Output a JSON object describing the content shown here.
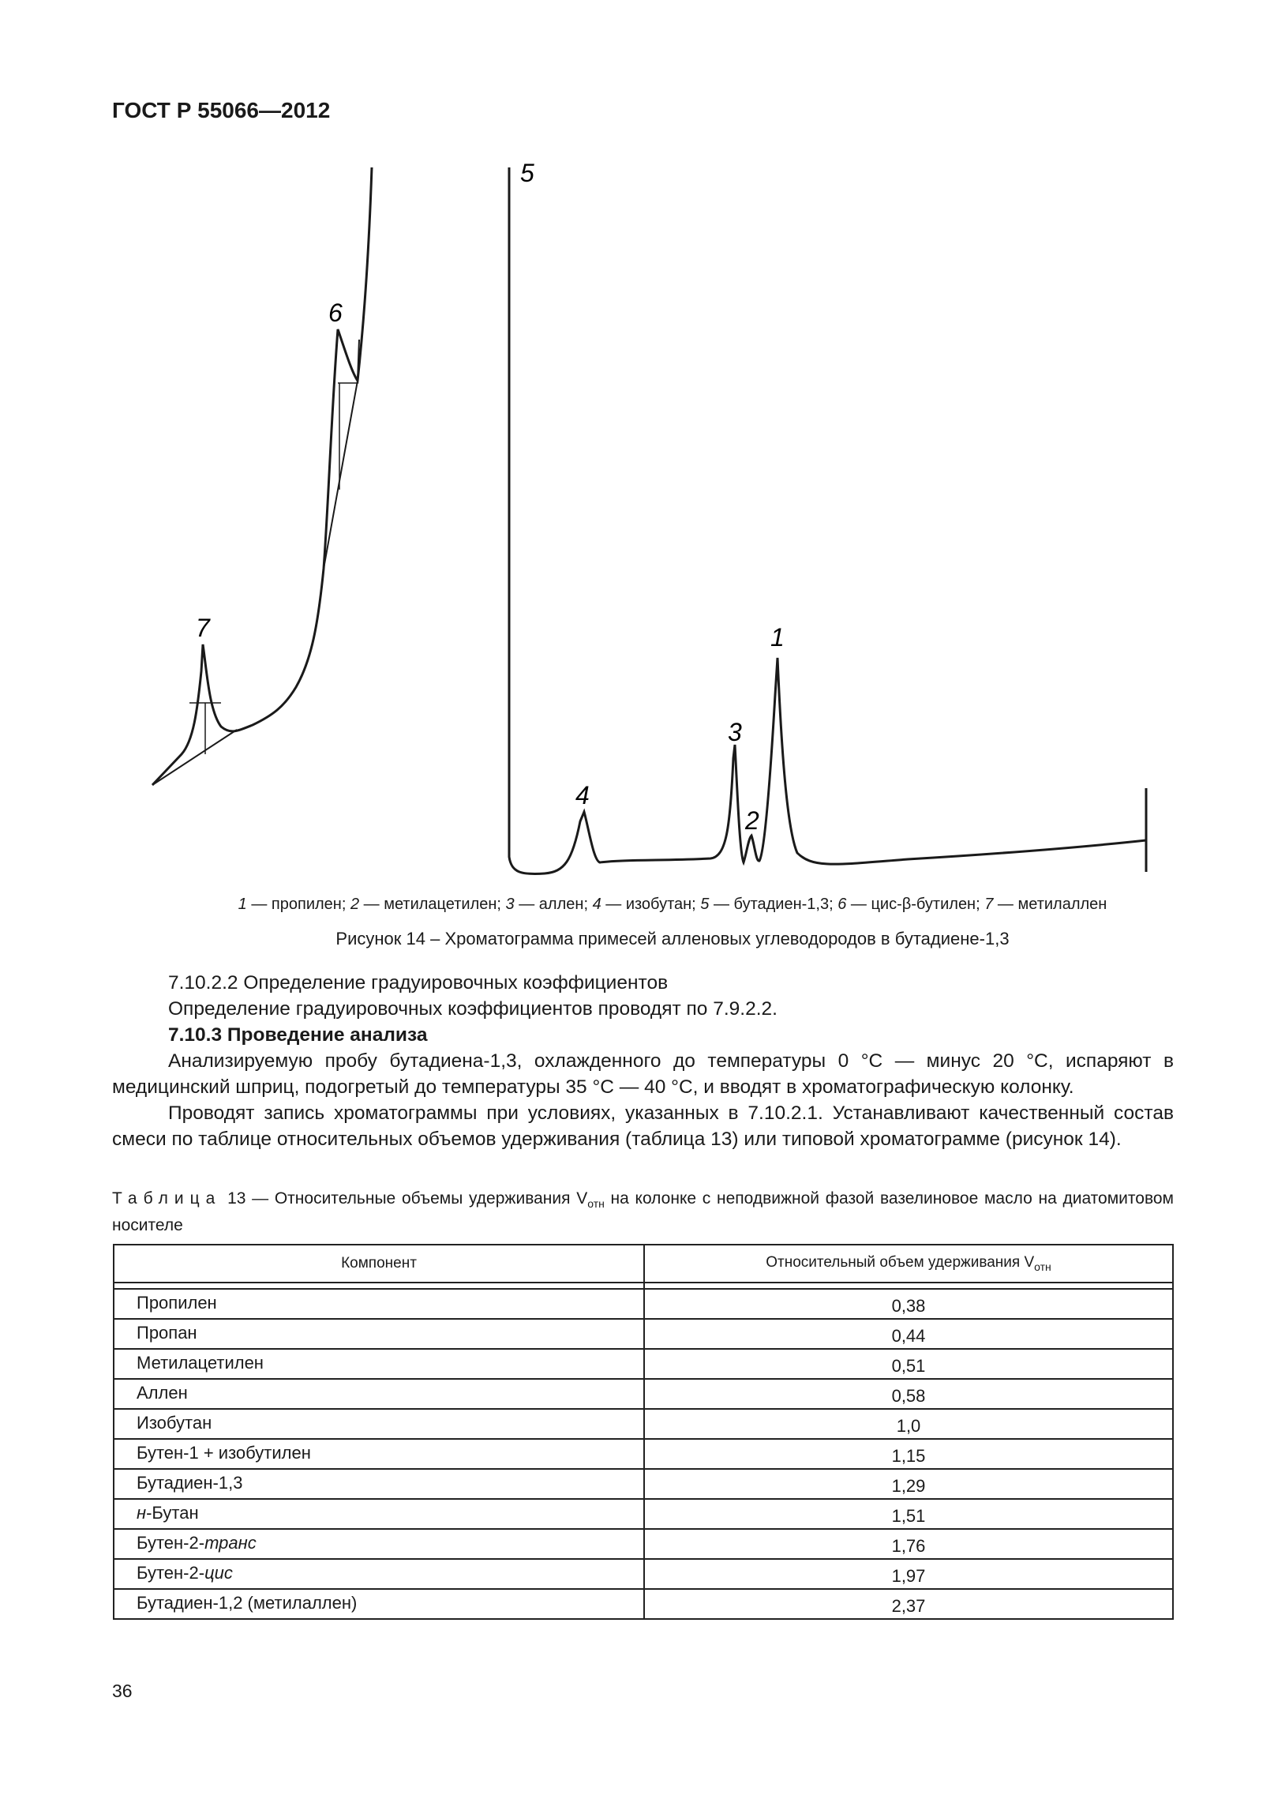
{
  "header": "ГОСТ Р 55066—2012",
  "figure": {
    "peak_labels": [
      "1",
      "2",
      "3",
      "4",
      "5",
      "6",
      "7"
    ],
    "legend": [
      {
        "num": "1",
        "name": "пропилен"
      },
      {
        "num": "2",
        "name": "метилацетилен"
      },
      {
        "num": "3",
        "name": "аллен"
      },
      {
        "num": "4",
        "name": "изобутан"
      },
      {
        "num": "5",
        "name": "бутадиен-1,3"
      },
      {
        "num": "6",
        "name": "цис-β-бутилен"
      },
      {
        "num": "7",
        "name": "метилаллен"
      }
    ],
    "caption": "Рисунок 14 – Хроматограмма примесей алленовых углеводородов в бутадиене-1,3"
  },
  "body": {
    "p1": "7.10.2.2 Определение градуировочных коэффициентов",
    "p2": "Определение градуировочных коэффициентов проводят по 7.9.2.2.",
    "h": "7.10.3 Проведение анализа",
    "p3": "Анализируемую пробу бутадиена-1,3, охлажденного до температуры 0 °С — минус 20 °С, испаряют в медицинский шприц, подогретый до температуры 35 °С — 40 °С, и вводят в хроматографическую колонку.",
    "p4": "Проводят запись хроматограммы при условиях, указанных в 7.10.2.1. Устанавливают качественный состав смеси по таблице относительных объемов удерживания (таблица 13) или типовой хроматограмме (рисунок 14)."
  },
  "table": {
    "caption_prefix": "Таблица",
    "caption_text": "13 — Относительные объемы удерживания V",
    "caption_sub": "отн",
    "caption_rest": " на колонке с неподвижной фазой  вазелиновое масло на диатомитовом носителе",
    "col1": "Компонент",
    "col2": "Относительный объем удерживания V",
    "col2_sub": "отн",
    "rows": [
      {
        "name": "Пропилен",
        "value": "0,38"
      },
      {
        "name": "Пропан",
        "value": "0,44"
      },
      {
        "name": "Метилацетилен",
        "value": "0,51"
      },
      {
        "name": "Аллен",
        "value": "0,58"
      },
      {
        "name": "Изобутан",
        "value": "1,0"
      },
      {
        "name": "Бутен-1 + изобутилен",
        "value": "1,15"
      },
      {
        "name": "Бутадиен-1,3",
        "value": "1,29"
      },
      {
        "name": "н-Бутан",
        "value": "1,51"
      },
      {
        "name": "Бутен-2-транс",
        "value": "1,76"
      },
      {
        "name": "Бутен-2-цис",
        "value": "1,97"
      },
      {
        "name": "Бутадиен-1,2 (метилаллен)",
        "value": "2,37"
      }
    ]
  },
  "page_number": "36"
}
